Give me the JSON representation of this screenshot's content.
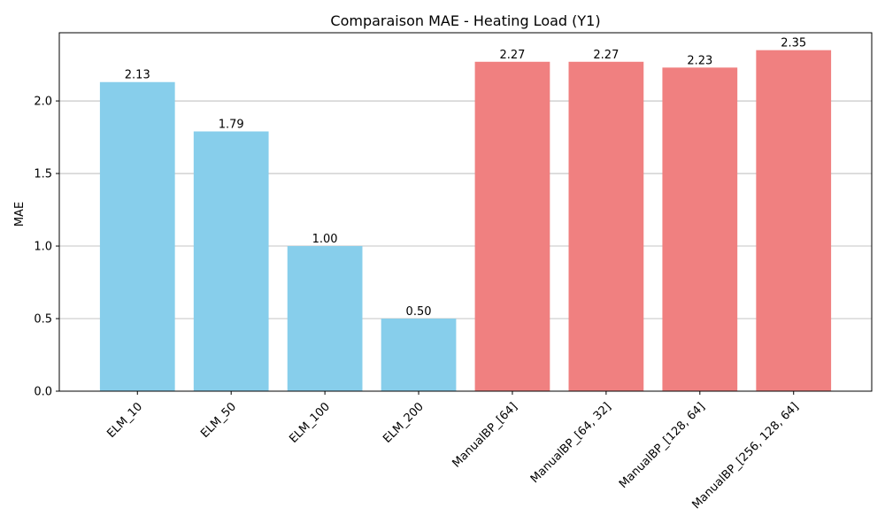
{
  "chart_data": {
    "type": "bar",
    "title": "Comparaison MAE - Heating Load (Y1)",
    "xlabel": "",
    "ylabel": "MAE",
    "categories": [
      "ELM_10",
      "ELM_50",
      "ELM_100",
      "ELM_200",
      "ManualBP_[64]",
      "ManualBP_[64, 32]",
      "ManualBP_[128, 64]",
      "ManualBP_[256, 128, 64]"
    ],
    "values": [
      2.13,
      1.79,
      1.0,
      0.5,
      2.27,
      2.27,
      2.23,
      2.35
    ],
    "value_labels": [
      "2.13",
      "1.79",
      "1.00",
      "0.50",
      "2.27",
      "2.27",
      "2.23",
      "2.35"
    ],
    "bar_colors": [
      "#87ceeb",
      "#87ceeb",
      "#87ceeb",
      "#87ceeb",
      "#f08080",
      "#f08080",
      "#f08080",
      "#f08080"
    ],
    "ylim": [
      0,
      2.47
    ],
    "yticks": [
      0.0,
      0.5,
      1.0,
      1.5,
      2.0
    ],
    "ytick_labels": [
      "0.0",
      "0.5",
      "1.0",
      "1.5",
      "2.0"
    ],
    "grid": "y"
  }
}
